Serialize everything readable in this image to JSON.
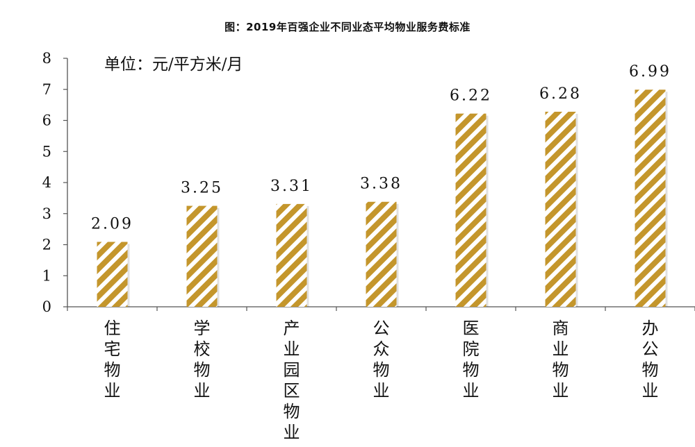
{
  "title": "图：2019年百强企业不同业态平均物业服务费标准",
  "unit_note": "单位：元/平方米/月",
  "colors": {
    "bar": "#c4962c",
    "bar_stripe": "#ffffff",
    "axis": "#555555"
  },
  "chart_data": {
    "type": "bar",
    "title": "图：2019年百强企业不同业态平均物业服务费标准",
    "ylabel": "单位：元/平方米/月",
    "xlabel": "",
    "ylim": [
      0,
      8
    ],
    "yticks": [
      0,
      1,
      2,
      3,
      4,
      5,
      6,
      7,
      8
    ],
    "categories": [
      "住宅物业",
      "学校物业",
      "产业园区物业",
      "公众物业",
      "医院物业",
      "商业物业",
      "办公物业"
    ],
    "values": [
      2.09,
      3.25,
      3.31,
      3.38,
      6.22,
      6.28,
      6.99
    ],
    "value_labels": [
      "2.09",
      "3.25",
      "3.31",
      "3.38",
      "6.22",
      "6.28",
      "6.99"
    ],
    "grid": false,
    "legend": "none"
  }
}
